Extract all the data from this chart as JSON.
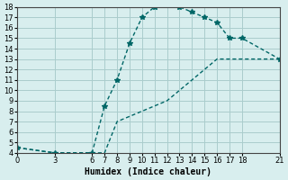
{
  "xlabel": "Humidex (Indice chaleur)",
  "bg_color": "#d8eeee",
  "line_color": "#006666",
  "x_upper": [
    0,
    3,
    6,
    7,
    8,
    9,
    10,
    11,
    12,
    13,
    14,
    15,
    16,
    17,
    18,
    21
  ],
  "y_upper": [
    4.5,
    4.0,
    4.0,
    8.5,
    11.0,
    14.5,
    17.0,
    18.0,
    18.2,
    18.0,
    17.5,
    17.0,
    16.5,
    15.0,
    15.0,
    13.0
  ],
  "x_lower": [
    0,
    3,
    6,
    7,
    8,
    9,
    10,
    11,
    12,
    13,
    14,
    15,
    16,
    17,
    18,
    21
  ],
  "y_lower": [
    4.5,
    4.0,
    4.0,
    4.0,
    7.0,
    7.5,
    8.0,
    8.5,
    9.0,
    10.0,
    11.0,
    12.0,
    13.0,
    13.0,
    13.0,
    13.0
  ],
  "xticks": [
    0,
    3,
    6,
    7,
    8,
    9,
    10,
    11,
    12,
    13,
    14,
    15,
    16,
    17,
    18,
    21
  ],
  "yticks": [
    4,
    5,
    6,
    7,
    8,
    9,
    10,
    11,
    12,
    13,
    14,
    15,
    16,
    17,
    18
  ],
  "xlim": [
    0,
    21
  ],
  "ylim": [
    4,
    18
  ],
  "grid_color": "#aacccc",
  "title_fontsize": 7.5,
  "axis_fontsize": 7,
  "tick_fontsize": 6
}
